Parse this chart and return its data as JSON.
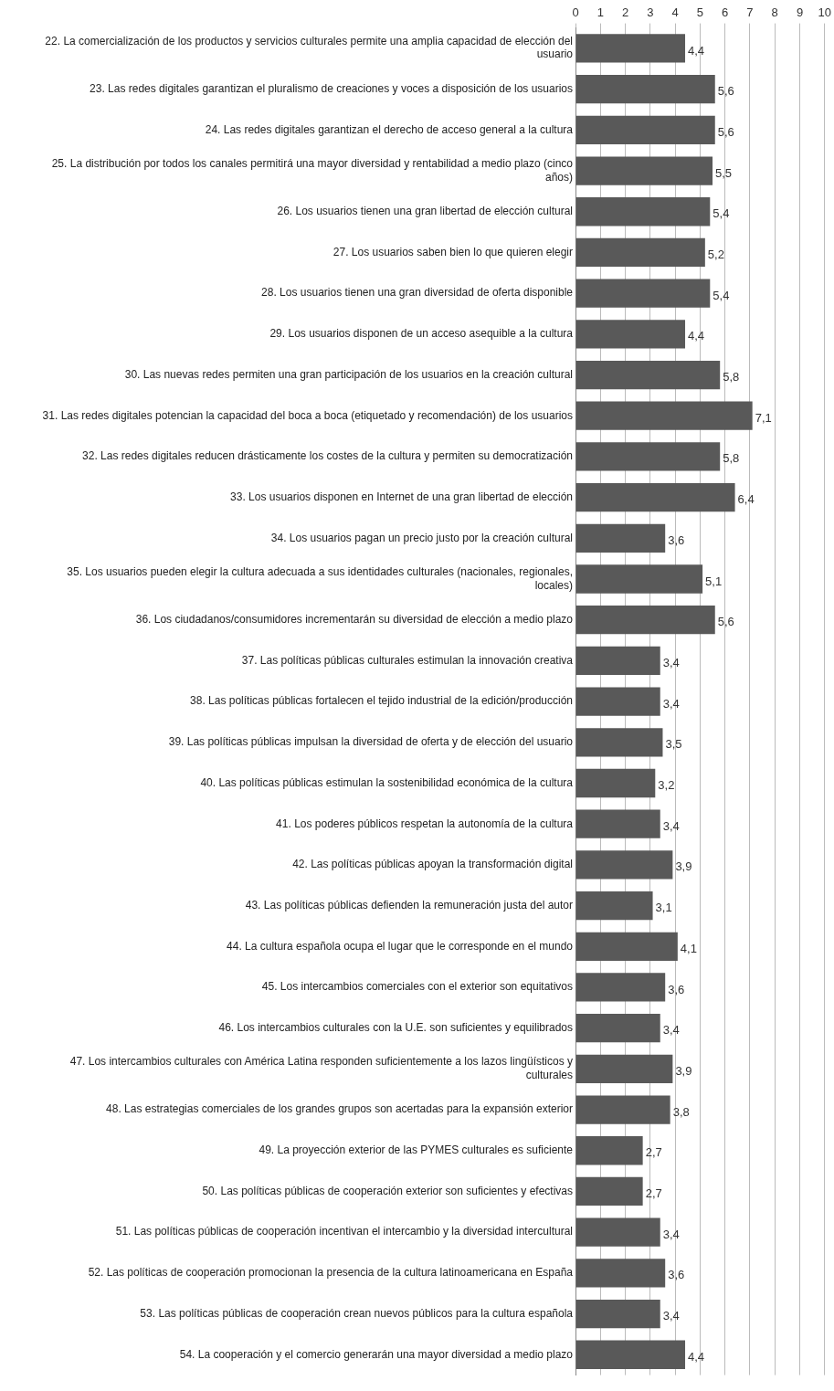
{
  "chart_data": {
    "type": "bar",
    "orientation": "horizontal",
    "categories": [
      "22. La comercialización de los productos y servicios culturales permite una amplia capacidad de elección del usuario",
      "23. Las redes digitales garantizan el pluralismo de creaciones y voces a disposición de los usuarios",
      "24. Las redes digitales garantizan el derecho de acceso general a la cultura",
      "25. La distribución por todos los canales permitirá una mayor diversidad y rentabilidad a medio plazo (cinco años)",
      "26. Los usuarios tienen una gran libertad de elección cultural",
      "27. Los usuarios saben bien lo que quieren elegir",
      "28. Los usuarios tienen una gran diversidad de oferta disponible",
      "29. Los usuarios disponen de un acceso asequible a la cultura",
      "30. Las nuevas redes permiten una gran participación de los usuarios en la creación cultural",
      "31. Las redes digitales potencian la capacidad del boca a boca (etiquetado y recomendación) de los usuarios",
      "32. Las redes digitales reducen drásticamente los costes de la cultura y permiten su democratización",
      "33. Los usuarios disponen en Internet de una gran libertad de elección",
      "34. Los usuarios pagan un precio justo por la creación cultural",
      "35. Los usuarios pueden elegir la cultura adecuada a sus identidades culturales (nacionales, regionales, locales)",
      "36. Los ciudadanos/consumidores incrementarán su diversidad de elección a medio plazo",
      "37. Las políticas públicas culturales estimulan la innovación creativa",
      "38. Las políticas públicas fortalecen el tejido industrial de la edición/producción",
      "39. Las políticas públicas impulsan la diversidad de oferta y de elección del usuario",
      "40. Las políticas públicas estimulan la sostenibilidad económica de la cultura",
      "41. Los poderes públicos respetan la autonomía de la cultura",
      "42. Las políticas públicas apoyan la transformación digital",
      "43. Las políticas públicas defienden la remuneración justa del autor",
      "44. La cultura española ocupa el lugar que le corresponde en el mundo",
      "45. Los intercambios comerciales con el exterior son equitativos",
      "46. Los intercambios culturales con la U.E. son suficientes y equilibrados",
      "47. Los intercambios culturales con América Latina responden suficientemente a los lazos lingüísticos y culturales",
      "48. Las estrategias comerciales de los grandes grupos son acertadas para la expansión exterior",
      "49. La proyección exterior de las PYMES culturales es suficiente",
      "50. Las políticas públicas de cooperación exterior son suficientes y efectivas",
      "51. Las políticas públicas de cooperación incentivan el intercambio y la diversidad intercultural",
      "52. Las políticas de cooperación promocionan la presencia de la cultura latinoamericana en España",
      "53. Las políticas públicas de cooperación crean nuevos públicos para la cultura española",
      "54. La cooperación y el comercio generarán una mayor diversidad a medio plazo"
    ],
    "values": [
      4.4,
      5.6,
      5.6,
      5.5,
      5.4,
      5.2,
      5.4,
      4.4,
      5.8,
      7.1,
      5.8,
      6.4,
      3.6,
      5.1,
      5.6,
      3.4,
      3.4,
      3.5,
      3.2,
      3.4,
      3.9,
      3.1,
      4.1,
      3.6,
      3.4,
      3.9,
      3.8,
      2.7,
      2.7,
      3.4,
      3.6,
      3.4,
      4.4
    ],
    "value_labels": [
      "4,4",
      "5,6",
      "5,6",
      "5,5",
      "5,4",
      "5,2",
      "5,4",
      "4,4",
      "5,8",
      "7,1",
      "5,8",
      "6,4",
      "3,6",
      "5,1",
      "5,6",
      "3,4",
      "3,4",
      "3,5",
      "3,2",
      "3,4",
      "3,9",
      "3,1",
      "4,1",
      "3,6",
      "3,4",
      "3,9",
      "3,8",
      "2,7",
      "2,7",
      "3,4",
      "3,6",
      "3,4",
      "4,4"
    ],
    "color": "#595959",
    "xlim": [
      0,
      10
    ],
    "xticks": [
      0,
      1,
      2,
      3,
      4,
      5,
      6,
      7,
      8,
      9,
      10
    ],
    "grid": "x"
  }
}
